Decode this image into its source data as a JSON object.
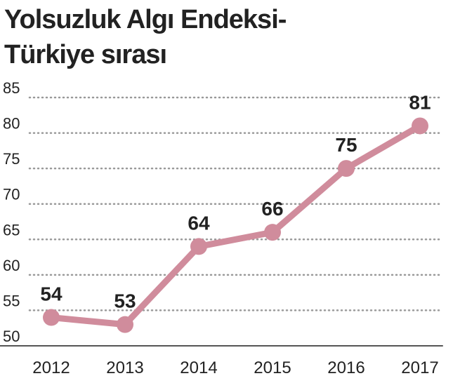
{
  "chart_data": {
    "type": "line",
    "title": [
      "Yolsuzluk Algı Endeksi-",
      "Türkiye sırası"
    ],
    "categories": [
      "2012",
      "2013",
      "2014",
      "2015",
      "2016",
      "2017"
    ],
    "series": [
      {
        "color": "#d08c9c",
        "values": [
          54,
          53,
          64,
          66,
          75,
          81
        ]
      }
    ],
    "ylim": [
      50,
      85
    ],
    "yticks": [
      50,
      55,
      60,
      65,
      70,
      75,
      80,
      85
    ],
    "grid": true
  }
}
